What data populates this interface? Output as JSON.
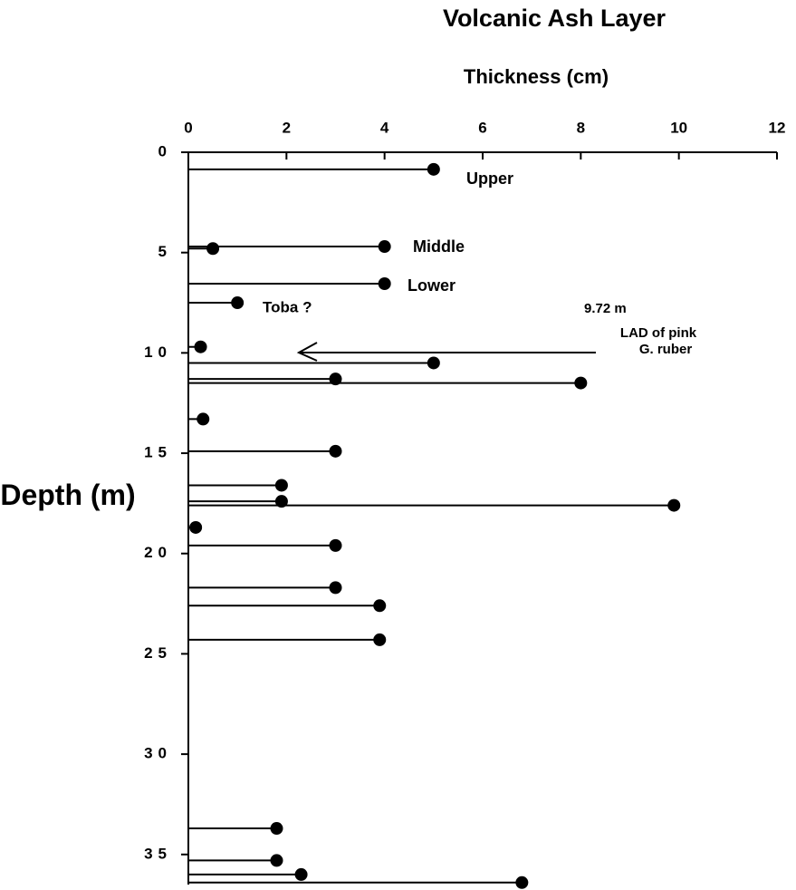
{
  "chart_data": {
    "type": "lollipop",
    "title": "Volcanic Ash Layer",
    "xlabel": "Thickness (cm)",
    "ylabel": "Depth (m)",
    "x": [
      5.0,
      4.0,
      0.5,
      4.0,
      1.0,
      0.25,
      5.0,
      3.0,
      8.0,
      0.3,
      3.0,
      1.9,
      1.9,
      9.9,
      0.15,
      3.0,
      3.0,
      3.9,
      3.9,
      1.8,
      1.8,
      2.3,
      6.8
    ],
    "y": [
      0.85,
      4.7,
      4.8,
      6.55,
      7.5,
      9.7,
      10.5,
      11.3,
      11.5,
      13.3,
      14.9,
      16.6,
      17.4,
      17.6,
      18.7,
      19.6,
      21.7,
      22.6,
      24.3,
      33.7,
      35.3,
      36.0,
      36.4
    ],
    "xlim": [
      0,
      12
    ],
    "xticks": [
      0,
      2,
      4,
      6,
      8,
      10,
      12
    ],
    "ylim": [
      0,
      36.5
    ],
    "yticks": [
      0,
      5,
      10,
      15,
      20,
      25,
      30,
      35
    ],
    "color": "#000000",
    "annotations": [
      "Upper",
      "Middle",
      "Lower",
      "Toba ?",
      "9.72  m",
      "LAD of pink",
      "G. ruber"
    ]
  }
}
